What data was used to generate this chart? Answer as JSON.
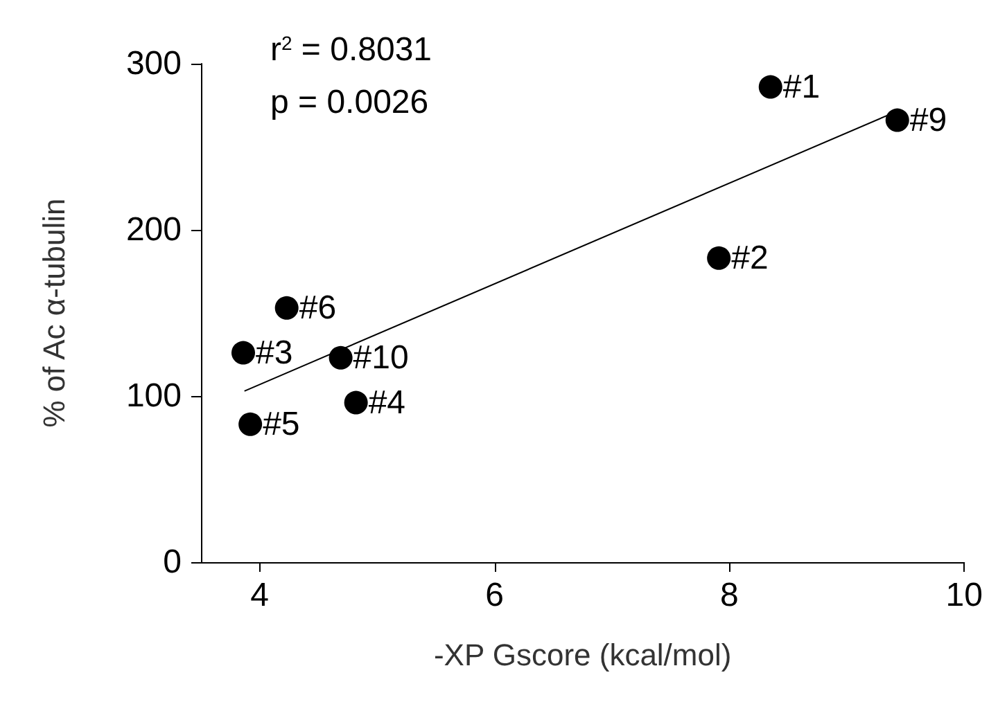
{
  "chart_data": {
    "type": "scatter",
    "xlabel": "-XP Gscore (kcal/mol)",
    "ylabel": "% of Ac α-tubulin",
    "x": [
      8.35,
      7.91,
      3.86,
      4.82,
      3.92,
      4.23,
      9.43,
      4.69
    ],
    "series": [
      {
        "color": "#000000",
        "marker": "circle",
        "values": [
          286,
          183,
          126,
          96,
          83,
          153,
          266,
          123
        ]
      },
      {
        "type": "line",
        "color": "#000000",
        "x": [
          3.87,
          9.35
        ],
        "values": [
          103,
          269
        ]
      }
    ],
    "xlim": [
      3.5,
      10
    ],
    "xticks": [
      4,
      6,
      8,
      10
    ],
    "ylim": [
      0,
      300
    ],
    "yticks": [
      0,
      100,
      200,
      300
    ],
    "grid": false,
    "annotations": [
      "r$^{2}$ = 0.8031",
      "p = 0.0026",
      {
        "text": "#1",
        "x": 8.35,
        "y": 286
      },
      {
        "text": "#2",
        "x": 7.91,
        "y": 183
      },
      {
        "text": "#3",
        "x": 3.86,
        "y": 126
      },
      {
        "text": "#4",
        "x": 4.82,
        "y": 96
      },
      {
        "text": "#5",
        "x": 3.92,
        "y": 83
      },
      {
        "text": "#6",
        "x": 4.23,
        "y": 153
      },
      {
        "text": "#9",
        "x": 9.43,
        "y": 266
      },
      {
        "text": "#10",
        "x": 4.69,
        "y": 123
      }
    ]
  }
}
